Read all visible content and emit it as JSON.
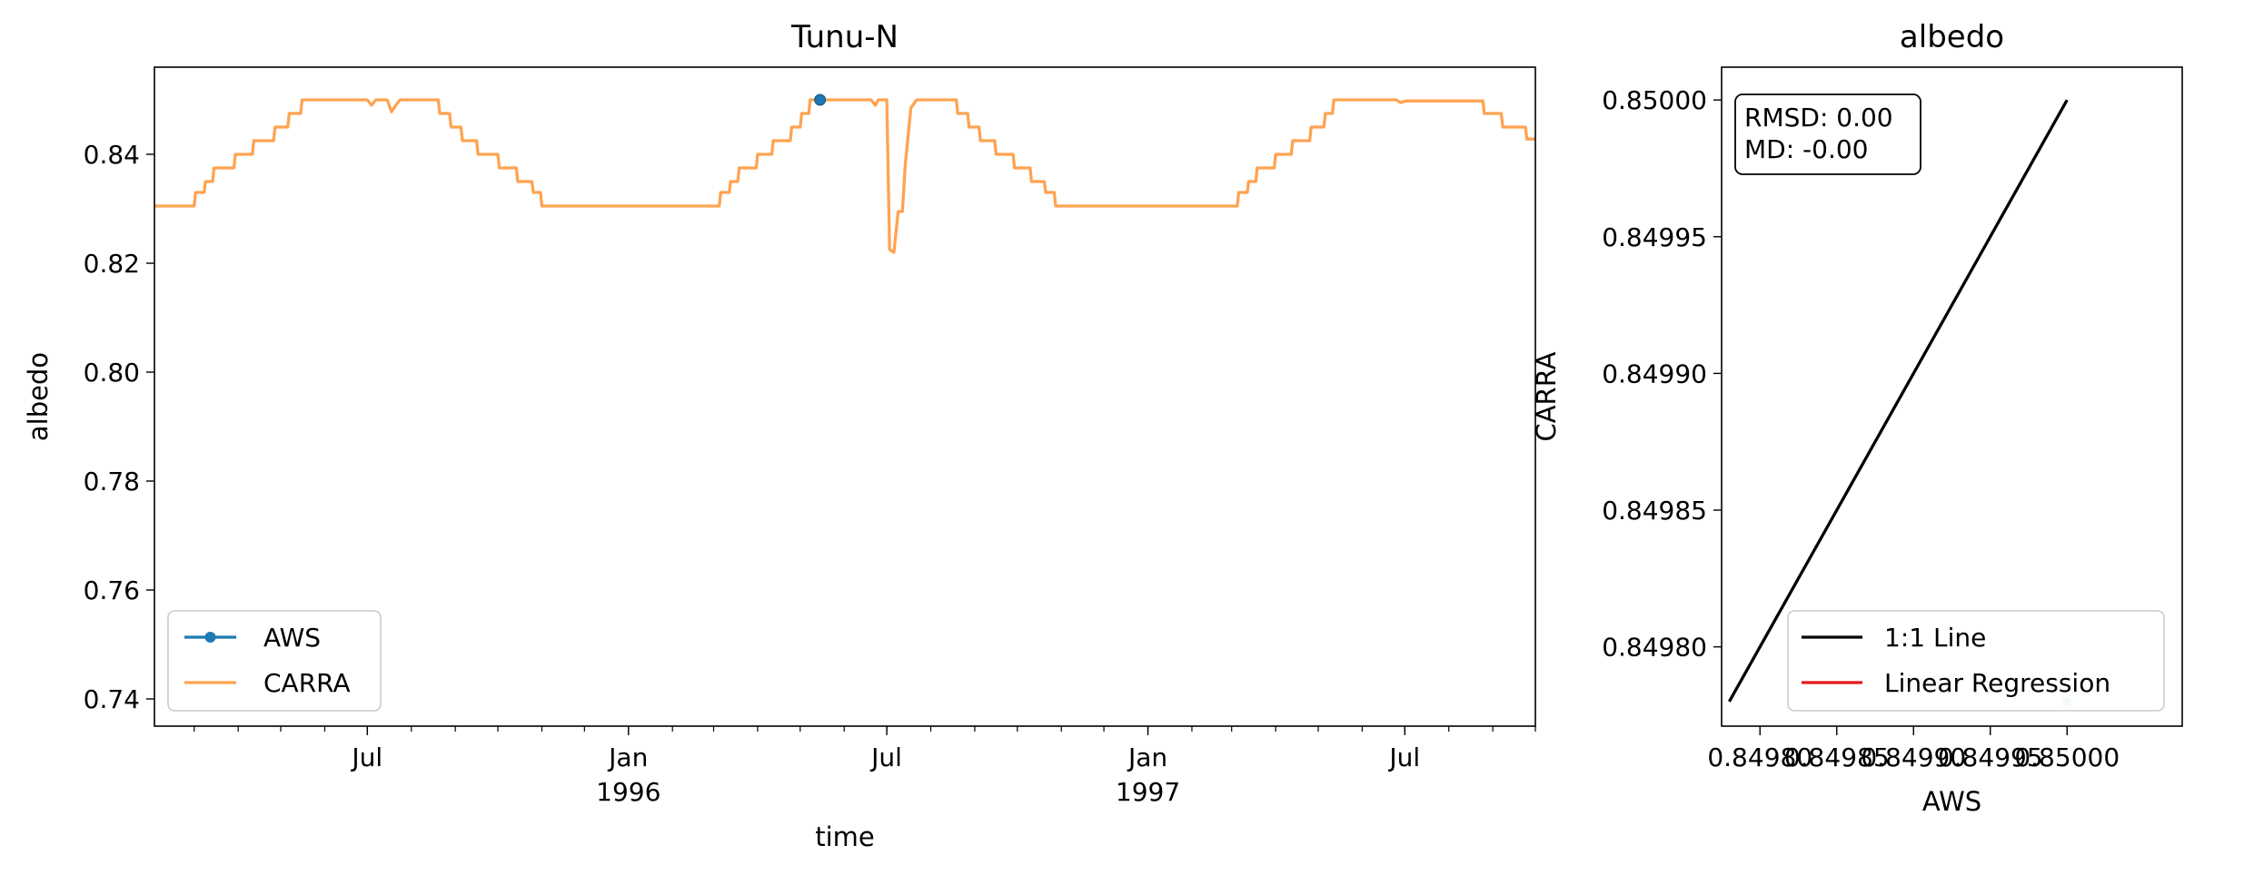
{
  "chart_data": [
    {
      "type": "line",
      "title": "Tunu-N",
      "xlabel": "time",
      "ylabel": "albedo",
      "ylim": [
        0.735,
        0.856
      ],
      "xlim": [
        "1995-02-01",
        "1997-10-01"
      ],
      "yticks": [
        0.74,
        0.76,
        0.78,
        0.8,
        0.82,
        0.84
      ],
      "ytick_labels": [
        "0.74",
        "0.76",
        "0.78",
        "0.80",
        "0.82",
        "0.84"
      ],
      "xticks": [
        {
          "x": "1995-07-01",
          "label": "Jul",
          "sublabel": ""
        },
        {
          "x": "1996-01-01",
          "label": "Jan",
          "sublabel": "1996"
        },
        {
          "x": "1996-07-01",
          "label": "Jul",
          "sublabel": ""
        },
        {
          "x": "1997-01-01",
          "label": "Jan",
          "sublabel": "1997"
        },
        {
          "x": "1997-07-01",
          "label": "Jul",
          "sublabel": ""
        }
      ],
      "grid": false,
      "legend": "lower-left",
      "series": [
        {
          "name": "AWS",
          "color": "#1f77b4",
          "marker": "circle",
          "points": [
            [
              "1996-05-15",
              0.85
            ]
          ]
        },
        {
          "name": "CARRA",
          "color": "#ffa352",
          "points": [
            [
              "1995-02-01",
              0.8305
            ],
            [
              "1995-03-01",
              0.8305
            ],
            [
              "1995-03-02",
              0.833
            ],
            [
              "1995-03-08",
              0.833
            ],
            [
              "1995-03-09",
              0.835
            ],
            [
              "1995-03-14",
              0.835
            ],
            [
              "1995-03-15",
              0.8375
            ],
            [
              "1995-03-29",
              0.8375
            ],
            [
              "1995-03-30",
              0.84
            ],
            [
              "1995-04-11",
              0.84
            ],
            [
              "1995-04-12",
              0.8425
            ],
            [
              "1995-04-26",
              0.8425
            ],
            [
              "1995-04-27",
              0.845
            ],
            [
              "1995-05-06",
              0.845
            ],
            [
              "1995-05-07",
              0.8475
            ],
            [
              "1995-05-15",
              0.8475
            ],
            [
              "1995-05-16",
              0.85
            ],
            [
              "1995-07-01",
              0.85
            ],
            [
              "1995-07-04",
              0.849
            ],
            [
              "1995-07-07",
              0.85
            ],
            [
              "1995-07-15",
              0.85
            ],
            [
              "1995-07-18",
              0.8478
            ],
            [
              "1995-07-21",
              0.849
            ],
            [
              "1995-07-24",
              0.85
            ],
            [
              "1995-08-20",
              0.85
            ],
            [
              "1995-08-21",
              0.8475
            ],
            [
              "1995-08-28",
              0.8475
            ],
            [
              "1995-08-29",
              0.845
            ],
            [
              "1995-09-05",
              0.845
            ],
            [
              "1995-09-06",
              0.8425
            ],
            [
              "1995-09-16",
              0.8425
            ],
            [
              "1995-09-17",
              0.84
            ],
            [
              "1995-10-01",
              0.84
            ],
            [
              "1995-10-02",
              0.8375
            ],
            [
              "1995-10-14",
              0.8375
            ],
            [
              "1995-10-15",
              0.835
            ],
            [
              "1995-10-25",
              0.835
            ],
            [
              "1995-10-26",
              0.833
            ],
            [
              "1995-10-31",
              0.833
            ],
            [
              "1995-11-01",
              0.8305
            ],
            [
              "1996-03-05",
              0.8305
            ],
            [
              "1996-03-06",
              0.833
            ],
            [
              "1996-03-12",
              0.833
            ],
            [
              "1996-03-13",
              0.835
            ],
            [
              "1996-03-18",
              0.835
            ],
            [
              "1996-03-19",
              0.8375
            ],
            [
              "1996-03-31",
              0.8375
            ],
            [
              "1996-04-01",
              0.84
            ],
            [
              "1996-04-11",
              0.84
            ],
            [
              "1996-04-12",
              0.8425
            ],
            [
              "1996-04-24",
              0.8425
            ],
            [
              "1996-04-25",
              0.845
            ],
            [
              "1996-05-01",
              0.845
            ],
            [
              "1996-05-02",
              0.8475
            ],
            [
              "1996-05-07",
              0.8475
            ],
            [
              "1996-05-08",
              0.85
            ],
            [
              "1996-06-20",
              0.85
            ],
            [
              "1996-06-23",
              0.849
            ],
            [
              "1996-06-25",
              0.85
            ],
            [
              "1996-07-01",
              0.85
            ],
            [
              "1996-07-03",
              0.8225
            ],
            [
              "1996-07-06",
              0.822
            ],
            [
              "1996-07-09",
              0.8295
            ],
            [
              "1996-07-12",
              0.8295
            ],
            [
              "1996-07-14",
              0.838
            ],
            [
              "1996-07-18",
              0.8485
            ],
            [
              "1996-07-22",
              0.85
            ],
            [
              "1996-08-19",
              0.85
            ],
            [
              "1996-08-20",
              0.8475
            ],
            [
              "1996-08-27",
              0.8475
            ],
            [
              "1996-08-28",
              0.845
            ],
            [
              "1996-09-04",
              0.845
            ],
            [
              "1996-09-05",
              0.8425
            ],
            [
              "1996-09-15",
              0.8425
            ],
            [
              "1996-09-16",
              0.84
            ],
            [
              "1996-09-28",
              0.84
            ],
            [
              "1996-09-29",
              0.8375
            ],
            [
              "1996-10-10",
              0.8375
            ],
            [
              "1996-10-11",
              0.835
            ],
            [
              "1996-10-20",
              0.835
            ],
            [
              "1996-10-21",
              0.833
            ],
            [
              "1996-10-27",
              0.833
            ],
            [
              "1996-10-28",
              0.8305
            ],
            [
              "1997-03-05",
              0.8305
            ],
            [
              "1997-03-06",
              0.833
            ],
            [
              "1997-03-12",
              0.833
            ],
            [
              "1997-03-13",
              0.835
            ],
            [
              "1997-03-18",
              0.835
            ],
            [
              "1997-03-19",
              0.8375
            ],
            [
              "1997-03-31",
              0.8375
            ],
            [
              "1997-04-01",
              0.84
            ],
            [
              "1997-04-12",
              0.84
            ],
            [
              "1997-04-13",
              0.8425
            ],
            [
              "1997-04-25",
              0.8425
            ],
            [
              "1997-04-26",
              0.845
            ],
            [
              "1997-05-05",
              0.845
            ],
            [
              "1997-05-06",
              0.8475
            ],
            [
              "1997-05-11",
              0.8475
            ],
            [
              "1997-05-12",
              0.85
            ],
            [
              "1997-06-25",
              0.85
            ],
            [
              "1997-06-28",
              0.8495
            ],
            [
              "1997-07-02",
              0.8498
            ],
            [
              "1997-08-25",
              0.8498
            ],
            [
              "1997-08-26",
              0.8475
            ],
            [
              "1997-09-07",
              0.8475
            ],
            [
              "1997-09-08",
              0.845
            ],
            [
              "1997-09-24",
              0.845
            ],
            [
              "1997-09-25",
              0.8428
            ],
            [
              "1997-10-01",
              0.8428
            ]
          ]
        }
      ]
    },
    {
      "type": "scatter",
      "title": "albedo",
      "xlabel": "AWS",
      "ylabel": "CARRA",
      "xlim": [
        0.849775,
        0.850075
      ],
      "ylim": [
        0.849771,
        0.850012
      ],
      "xticks": [
        0.8498,
        0.84985,
        0.8499,
        0.84995,
        0.85
      ],
      "xtick_labels": [
        "0.84980",
        "0.84985",
        "0.84990",
        "0.84995",
        "0.85000"
      ],
      "yticks": [
        0.8498,
        0.84985,
        0.8499,
        0.84995,
        0.85
      ],
      "ytick_labels": [
        "0.84980",
        "0.84985",
        "0.84990",
        "0.84995",
        "0.85000"
      ],
      "grid": false,
      "legend": "lower-right",
      "annotation": {
        "lines": [
          "RMSD: 0.00",
          "MD: -0.00"
        ],
        "position": "top-left"
      },
      "series": [
        {
          "name": "1:1 Line",
          "color": "#000000",
          "points": [
            [
              0.84978,
              0.84978
            ],
            [
              0.85,
              0.85
            ]
          ]
        },
        {
          "name": "Linear Regression",
          "color": "#e41a1c",
          "points": []
        },
        {
          "name": "",
          "color": "#1f77b4",
          "marker": "circle",
          "points": [
            [
              0.85,
              0.84978
            ]
          ]
        }
      ]
    }
  ]
}
